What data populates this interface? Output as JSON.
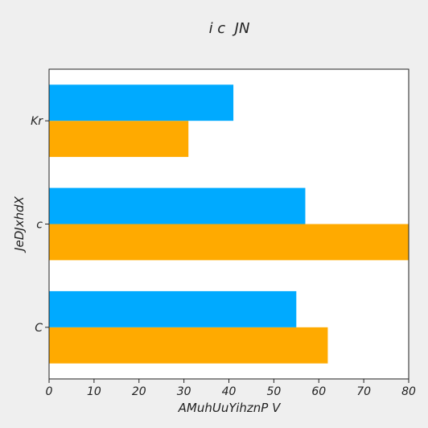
{
  "chart_data": {
    "type": "bar",
    "orientation": "horizontal",
    "title": "i c  JN",
    "xlabel": "AMuhUuYihznP V",
    "ylabel": "JeDJxhdX",
    "categories": [
      "C",
      "c",
      "Kr"
    ],
    "series": [
      {
        "color": "#ffaa00",
        "values": [
          62,
          80,
          31
        ]
      },
      {
        "color": "#00aaff",
        "values": [
          55,
          57,
          41
        ]
      }
    ],
    "xlim": [
      0,
      80
    ],
    "xticks": [
      0,
      10,
      20,
      30,
      40,
      50,
      60,
      70,
      80
    ],
    "grid": false,
    "legend": "none",
    "colors": {
      "background": "#efefef",
      "plot_background": "#ffffff",
      "axis": "#222222",
      "text": "#222222"
    }
  }
}
